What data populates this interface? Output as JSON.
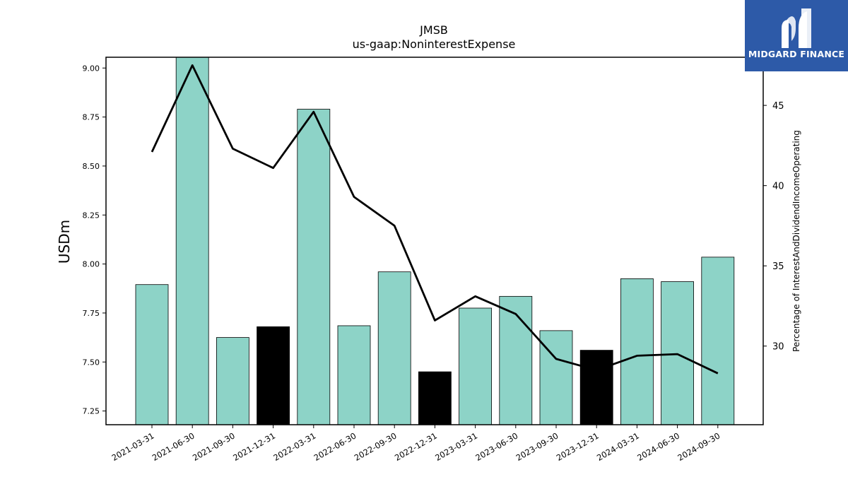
{
  "logo": {
    "text": "MIDGARD FINANCE",
    "bg_color": "#2d5aa8"
  },
  "chart_data": {
    "type": "bar",
    "title": "JMSB",
    "subtitle": "us-gaap:NoninterestExpense",
    "ylabel": "USDm",
    "y2label": "Percentage of InterestAndDividendIncomeOperating",
    "categories": [
      "2021-03-31",
      "2021-06-30",
      "2021-09-30",
      "2021-12-31",
      "2022-03-31",
      "2022-06-30",
      "2022-09-30",
      "2022-12-31",
      "2023-03-31",
      "2023-06-30",
      "2023-09-30",
      "2023-12-31",
      "2024-03-31",
      "2024-06-30",
      "2024-09-30"
    ],
    "series": [
      {
        "type": "bar",
        "axis": "left",
        "values": [
          7.895,
          9.06,
          7.625,
          7.68,
          8.79,
          7.685,
          7.96,
          7.45,
          7.775,
          7.835,
          7.66,
          7.56,
          7.925,
          7.91,
          8.035
        ],
        "colors": [
          "#8dd3c7",
          "#8dd3c7",
          "#8dd3c7",
          "#000000",
          "#8dd3c7",
          "#8dd3c7",
          "#8dd3c7",
          "#000000",
          "#8dd3c7",
          "#8dd3c7",
          "#8dd3c7",
          "#000000",
          "#8dd3c7",
          "#8dd3c7",
          "#8dd3c7"
        ]
      },
      {
        "type": "line",
        "axis": "right",
        "color": "#000000",
        "values": [
          42.1,
          47.5,
          42.3,
          41.1,
          44.6,
          39.3,
          37.5,
          31.6,
          33.1,
          32.0,
          29.2,
          28.5,
          29.4,
          29.5,
          28.3
        ]
      }
    ],
    "ylim": [
      7.18,
      9.055
    ],
    "yticks": [
      "7.25",
      "7.50",
      "7.75",
      "8.00",
      "8.25",
      "8.50",
      "8.75",
      "9.00"
    ],
    "y2lim": [
      25.1,
      48.0
    ],
    "y2ticks": [
      "30",
      "35",
      "40",
      "45"
    ],
    "grid": false,
    "legend": "none"
  }
}
